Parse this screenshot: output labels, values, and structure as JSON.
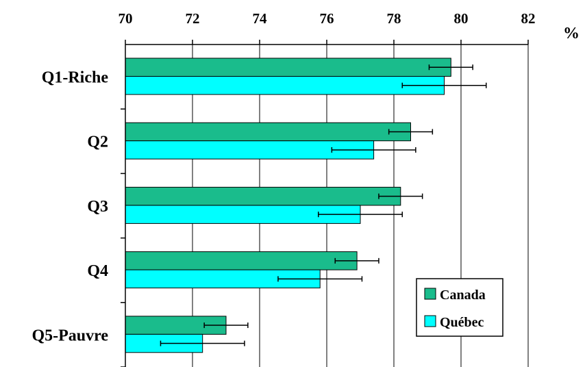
{
  "chart_data": {
    "type": "bar",
    "orientation": "horizontal",
    "categories": [
      "Q1-Riche",
      "Q2",
      "Q3",
      "Q4",
      "Q5-Pauvre"
    ],
    "series": [
      {
        "name": "Canada",
        "color": "#1ABC8C",
        "values": [
          79.7,
          78.5,
          78.2,
          76.9,
          73.0
        ],
        "error_low": [
          79.05,
          77.85,
          77.55,
          76.25,
          72.35
        ],
        "error_high": [
          80.35,
          79.15,
          78.85,
          77.55,
          73.65
        ]
      },
      {
        "name": "Québec",
        "color": "#00FFFF",
        "values": [
          79.5,
          77.4,
          77.0,
          75.8,
          72.3
        ],
        "error_low": [
          78.25,
          76.15,
          75.75,
          74.55,
          71.05
        ],
        "error_high": [
          80.75,
          78.65,
          78.25,
          77.05,
          73.55
        ]
      }
    ],
    "xlim": [
      70,
      82
    ],
    "x_ticks": [
      "70",
      "72",
      "74",
      "76",
      "78",
      "80",
      "82"
    ],
    "x_unit": "%",
    "axis_position": "top",
    "grid": true,
    "legend_position": "bottom-right",
    "xlabel": "",
    "ylabel": "",
    "title": ""
  }
}
